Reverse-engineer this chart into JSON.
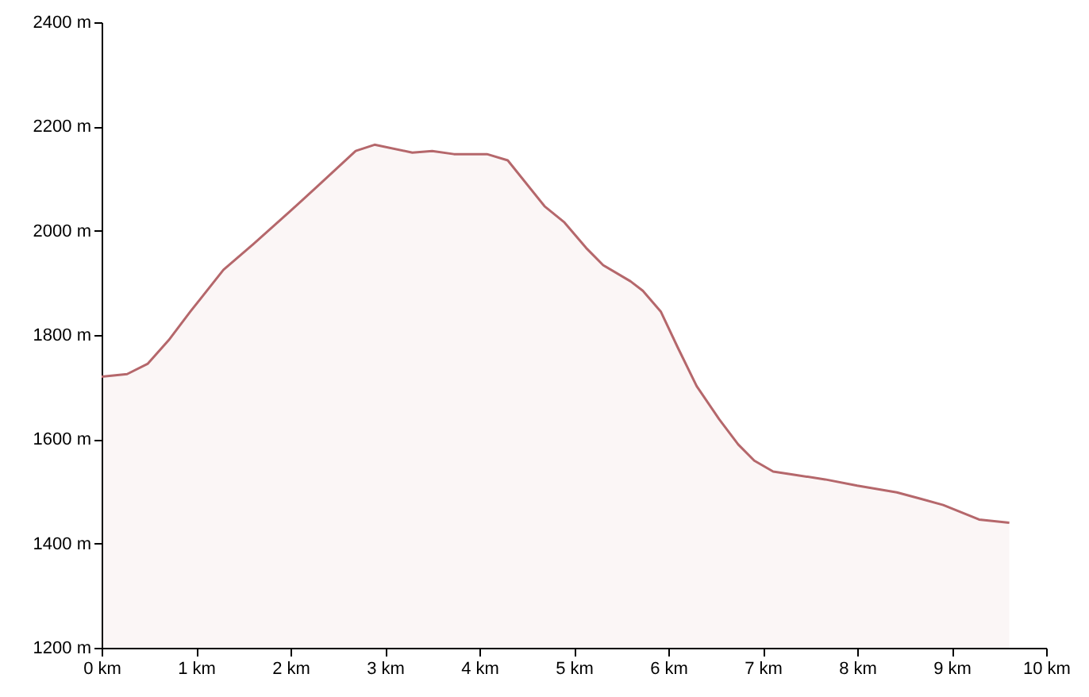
{
  "chart_data": {
    "type": "area",
    "x": [
      0,
      0.27,
      0.49,
      0.71,
      0.94,
      1.29,
      1.61,
      2.0,
      2.29,
      2.69,
      2.89,
      3.29,
      3.5,
      3.73,
      3.93,
      4.08,
      4.3,
      4.69,
      4.9,
      5.13,
      5.31,
      5.6,
      5.73,
      5.92,
      6.1,
      6.3,
      6.54,
      6.74,
      6.91,
      7.11,
      7.33,
      7.66,
      8.0,
      8.42,
      8.67,
      8.91,
      9.29,
      9.61
    ],
    "series": [
      {
        "color": "#b5676b",
        "values": [
          1720,
          1725,
          1745,
          1790,
          1845,
          1925,
          1975,
          2038,
          2086,
          2153,
          2165,
          2150,
          2153,
          2147,
          2147,
          2147,
          2135,
          2047,
          2016,
          1967,
          1934,
          1903,
          1885,
          1845,
          1776,
          1702,
          1638,
          1590,
          1559,
          1538,
          1532,
          1523,
          1511,
          1498,
          1486,
          1474,
          1446,
          1440
        ]
      }
    ],
    "xlim": [
      0,
      10
    ],
    "xticks": [
      {
        "value": 0,
        "label": "0 km"
      },
      {
        "value": 1,
        "label": "1 km"
      },
      {
        "value": 2,
        "label": "2 km"
      },
      {
        "value": 3,
        "label": "3 km"
      },
      {
        "value": 4,
        "label": "4 km"
      },
      {
        "value": 5,
        "label": "5 km"
      },
      {
        "value": 6,
        "label": "6 km"
      },
      {
        "value": 7,
        "label": "7 km"
      },
      {
        "value": 8,
        "label": "8 km"
      },
      {
        "value": 9,
        "label": "9 km"
      },
      {
        "value": 10,
        "label": "10 km"
      }
    ],
    "ylim": [
      1200,
      2400
    ],
    "yticks": [
      {
        "value": 1200,
        "label": "1200 m"
      },
      {
        "value": 1400,
        "label": "1400 m"
      },
      {
        "value": 1600,
        "label": "1600 m"
      },
      {
        "value": 1800,
        "label": "1800 m"
      },
      {
        "value": 2000,
        "label": "2000 m"
      },
      {
        "value": 2200,
        "label": "2200 m"
      },
      {
        "value": 2400,
        "label": "2400 m"
      }
    ],
    "grid": false
  }
}
